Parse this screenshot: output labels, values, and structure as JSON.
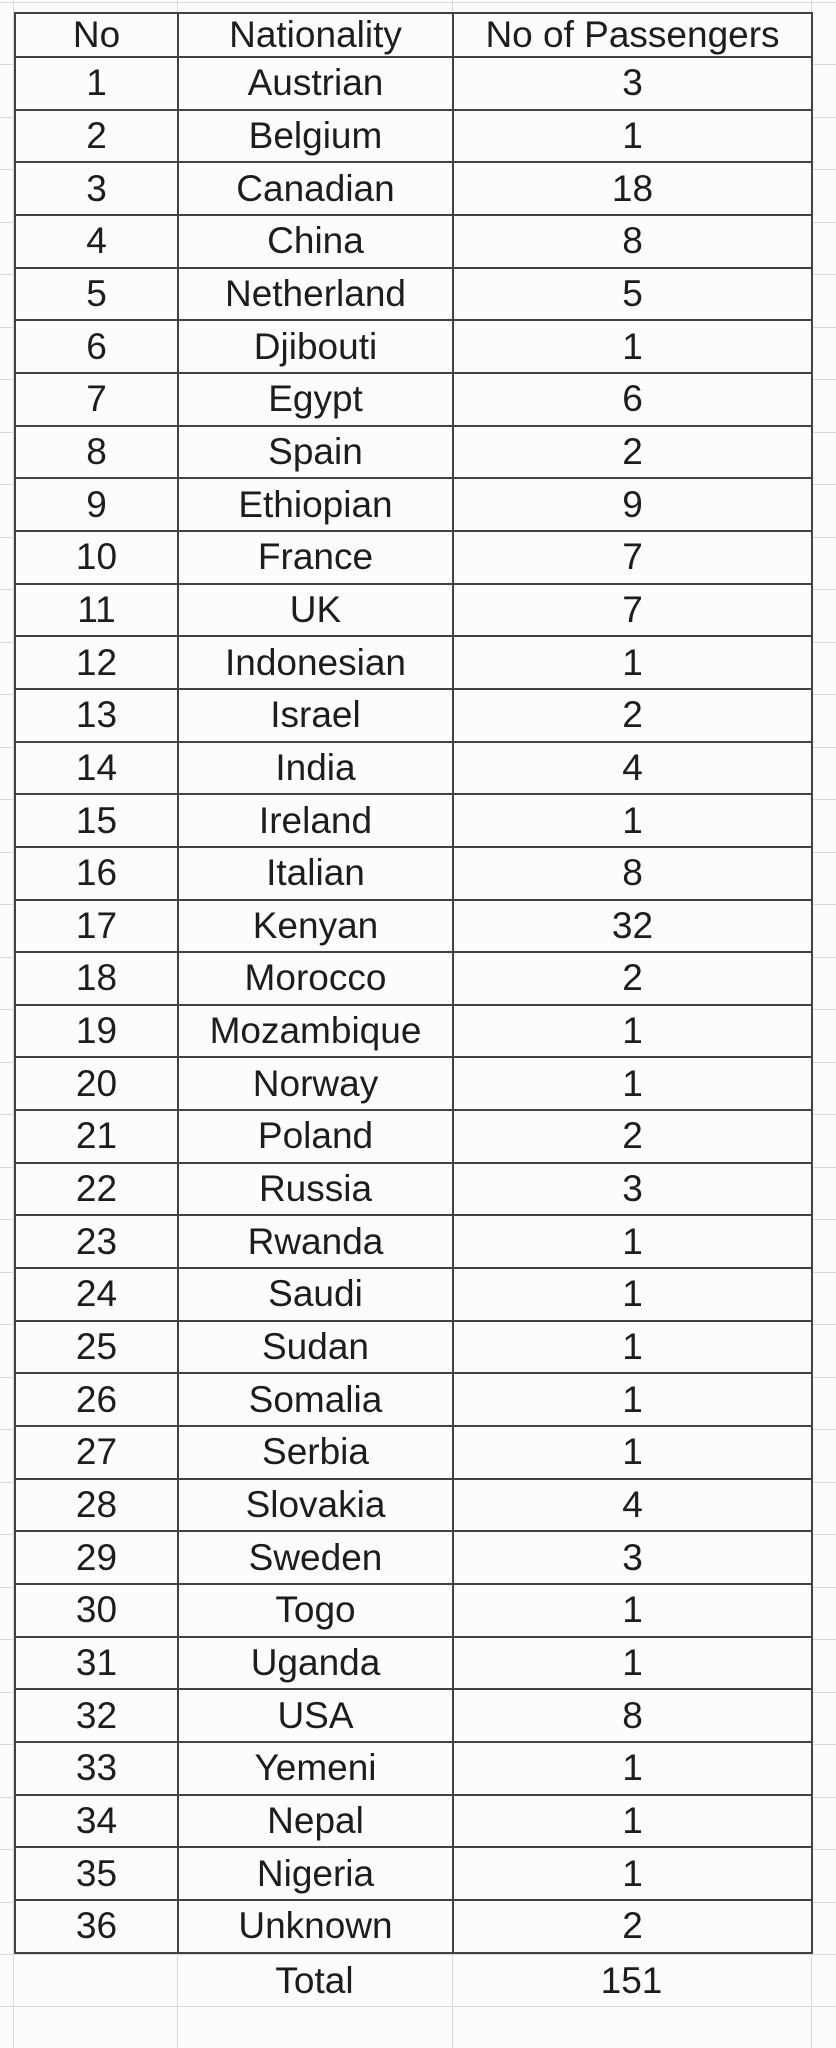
{
  "table": {
    "columns": [
      "No",
      "Nationality",
      "No of Passengers"
    ],
    "rows": [
      {
        "no": "1",
        "nationality": "Austrian",
        "passengers": "3"
      },
      {
        "no": "2",
        "nationality": "Belgium",
        "passengers": "1"
      },
      {
        "no": "3",
        "nationality": "Canadian",
        "passengers": "18"
      },
      {
        "no": "4",
        "nationality": "China",
        "passengers": "8"
      },
      {
        "no": "5",
        "nationality": "Netherland",
        "passengers": "5"
      },
      {
        "no": "6",
        "nationality": "Djibouti",
        "passengers": "1"
      },
      {
        "no": "7",
        "nationality": "Egypt",
        "passengers": "6"
      },
      {
        "no": "8",
        "nationality": "Spain",
        "passengers": "2"
      },
      {
        "no": "9",
        "nationality": "Ethiopian",
        "passengers": "9"
      },
      {
        "no": "10",
        "nationality": "France",
        "passengers": "7"
      },
      {
        "no": "11",
        "nationality": "UK",
        "passengers": "7"
      },
      {
        "no": "12",
        "nationality": "Indonesian",
        "passengers": "1"
      },
      {
        "no": "13",
        "nationality": "Israel",
        "passengers": "2"
      },
      {
        "no": "14",
        "nationality": "India",
        "passengers": "4"
      },
      {
        "no": "15",
        "nationality": "Ireland",
        "passengers": "1"
      },
      {
        "no": "16",
        "nationality": "Italian",
        "passengers": "8"
      },
      {
        "no": "17",
        "nationality": "Kenyan",
        "passengers": "32"
      },
      {
        "no": "18",
        "nationality": "Morocco",
        "passengers": "2"
      },
      {
        "no": "19",
        "nationality": "Mozambique",
        "passengers": "1"
      },
      {
        "no": "20",
        "nationality": "Norway",
        "passengers": "1"
      },
      {
        "no": "21",
        "nationality": "Poland",
        "passengers": "2"
      },
      {
        "no": "22",
        "nationality": "Russia",
        "passengers": "3"
      },
      {
        "no": "23",
        "nationality": "Rwanda",
        "passengers": "1"
      },
      {
        "no": "24",
        "nationality": "Saudi",
        "passengers": "1"
      },
      {
        "no": "25",
        "nationality": "Sudan",
        "passengers": "1"
      },
      {
        "no": "26",
        "nationality": "Somalia",
        "passengers": "1"
      },
      {
        "no": "27",
        "nationality": "Serbia",
        "passengers": "1"
      },
      {
        "no": "28",
        "nationality": "Slovakia",
        "passengers": "4"
      },
      {
        "no": "29",
        "nationality": "Sweden",
        "passengers": "3"
      },
      {
        "no": "30",
        "nationality": "Togo",
        "passengers": "1"
      },
      {
        "no": "31",
        "nationality": "Uganda",
        "passengers": "1"
      },
      {
        "no": "32",
        "nationality": "USA",
        "passengers": "8"
      },
      {
        "no": "33",
        "nationality": "Yemeni",
        "passengers": "1"
      },
      {
        "no": "34",
        "nationality": "Nepal",
        "passengers": "1"
      },
      {
        "no": "35",
        "nationality": "Nigeria",
        "passengers": "1"
      },
      {
        "no": "36",
        "nationality": "Unknown",
        "passengers": "2"
      }
    ],
    "total_label": "Total",
    "total_value": "151"
  },
  "colors": {
    "background": "#fcfcfc",
    "border_dark": "#424242",
    "grid_light": "#d9d9d9",
    "text": "#1d1d1d"
  }
}
